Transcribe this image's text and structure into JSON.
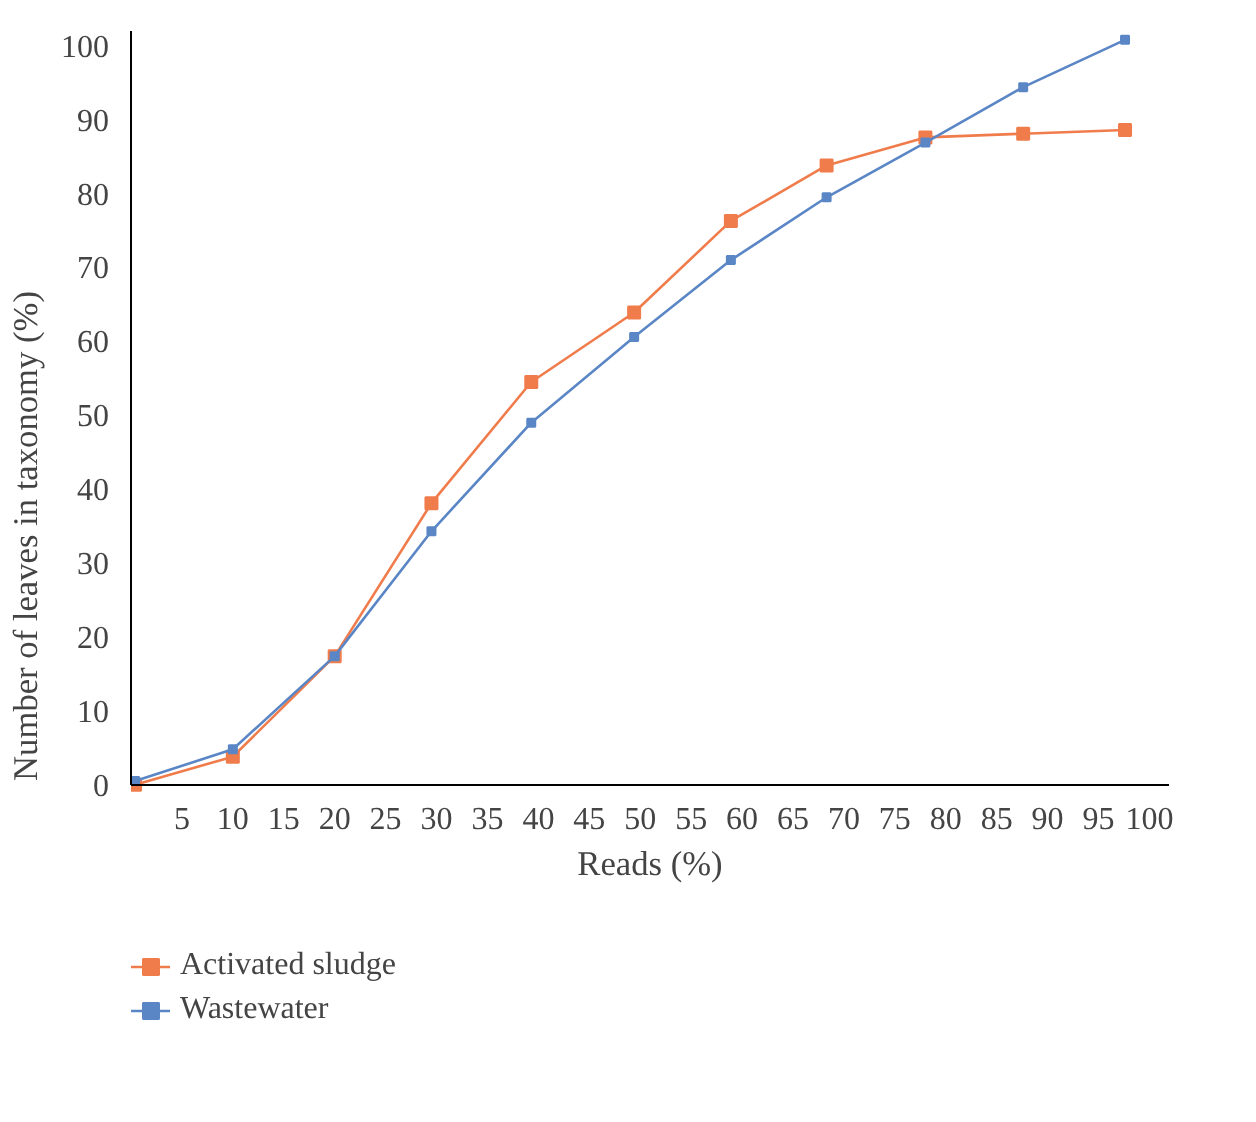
{
  "chart_data": {
    "type": "line",
    "xlabel": "Reads (%)",
    "ylabel": "Number of leaves in taxonomy (%)",
    "x": [
      0.4,
      10,
      20,
      29.5,
      39.3,
      49.4,
      58.9,
      68.3,
      78,
      87.6,
      97.6
    ],
    "series": [
      {
        "name": "Activated sludge",
        "color": "#f07c4c",
        "values": [
          0,
          3.8,
          17.4,
          38.1,
          54.5,
          63.9,
          76.3,
          83.8,
          87.6,
          88.1,
          88.6
        ]
      },
      {
        "name": "Wastewater",
        "color": "#5a86c6",
        "values": [
          0.5,
          4.8,
          17.4,
          34.3,
          49,
          60.6,
          71,
          79.5,
          86.9,
          94.4,
          100.8
        ]
      }
    ],
    "xlim": [
      0,
      102
    ],
    "ylim": [
      0,
      102
    ],
    "xticks": [
      5,
      10,
      15,
      20,
      25,
      30,
      35,
      40,
      45,
      50,
      55,
      60,
      65,
      70,
      75,
      80,
      85,
      90,
      95,
      100
    ],
    "yticks": [
      0,
      10,
      20,
      30,
      40,
      50,
      60,
      70,
      80,
      90,
      100
    ],
    "marker": "square",
    "line_style": "solid",
    "grid": false,
    "legend": "bottom left"
  }
}
